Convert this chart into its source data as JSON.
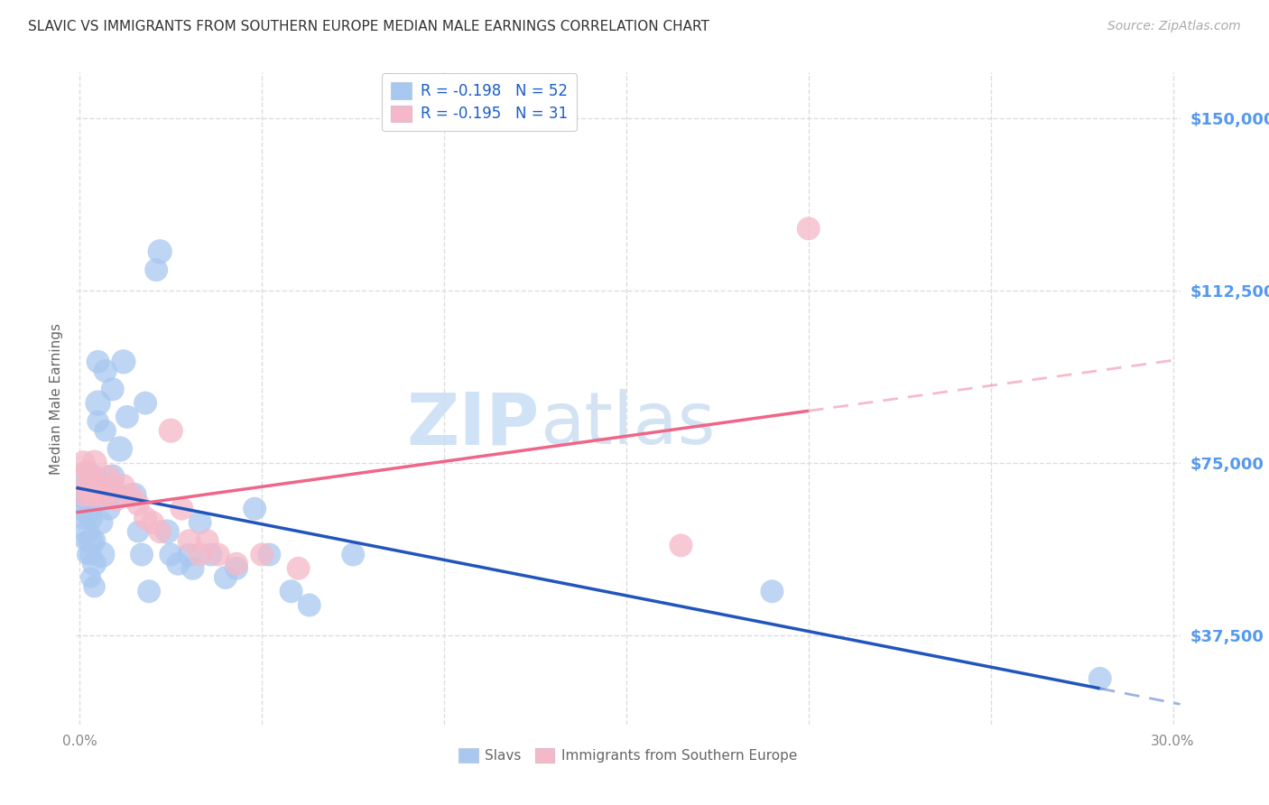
{
  "title": "SLAVIC VS IMMIGRANTS FROM SOUTHERN EUROPE MEDIAN MALE EARNINGS CORRELATION CHART",
  "source": "Source: ZipAtlas.com",
  "ylabel": "Median Male Earnings",
  "ytick_labels": [
    "$37,500",
    "$75,000",
    "$112,500",
    "$150,000"
  ],
  "ytick_values": [
    37500,
    75000,
    112500,
    150000
  ],
  "ymin": 18000,
  "ymax": 160000,
  "xmin": -0.001,
  "xmax": 0.302,
  "watermark_zip": "ZIP",
  "watermark_atlas": "atlas",
  "legend_line1": "R = -0.198   N = 52",
  "legend_line2": "R = -0.195   N = 31",
  "blue_scatter_color": "#A8C8F0",
  "pink_scatter_color": "#F5B8C8",
  "line_blue_color": "#2255BB",
  "line_pink_color": "#EE6688",
  "background_color": "#FFFFFF",
  "grid_color": "#DDDDDD",
  "title_fontsize": 11,
  "tick_label_color": "#5599EE",
  "ylabel_color": "#666666",
  "slavs_x": [
    0.001,
    0.001,
    0.001,
    0.002,
    0.002,
    0.002,
    0.002,
    0.003,
    0.003,
    0.003,
    0.003,
    0.004,
    0.004,
    0.004,
    0.005,
    0.005,
    0.005,
    0.006,
    0.006,
    0.007,
    0.007,
    0.008,
    0.008,
    0.009,
    0.009,
    0.01,
    0.011,
    0.012,
    0.013,
    0.015,
    0.016,
    0.017,
    0.018,
    0.019,
    0.021,
    0.022,
    0.024,
    0.025,
    0.027,
    0.03,
    0.031,
    0.033,
    0.036,
    0.04,
    0.043,
    0.048,
    0.052,
    0.058,
    0.063,
    0.075,
    0.19,
    0.28
  ],
  "slavs_y": [
    67000,
    63000,
    58000,
    70000,
    65000,
    60000,
    55000,
    63000,
    58000,
    55000,
    50000,
    58000,
    53000,
    48000,
    97000,
    88000,
    84000,
    62000,
    55000,
    95000,
    82000,
    68000,
    65000,
    91000,
    72000,
    68000,
    78000,
    97000,
    85000,
    68000,
    60000,
    55000,
    88000,
    47000,
    117000,
    121000,
    60000,
    55000,
    53000,
    55000,
    52000,
    62000,
    55000,
    50000,
    52000,
    65000,
    55000,
    47000,
    44000,
    55000,
    47000,
    28000
  ],
  "slavs_size": [
    35,
    50,
    30,
    200,
    80,
    55,
    40,
    55,
    60,
    45,
    40,
    50,
    55,
    45,
    50,
    60,
    45,
    50,
    65,
    50,
    45,
    60,
    50,
    50,
    55,
    50,
    60,
    55,
    50,
    55,
    45,
    50,
    50,
    50,
    50,
    55,
    55,
    50,
    50,
    50,
    50,
    50,
    50,
    50,
    50,
    50,
    50,
    50,
    50,
    50,
    50,
    50
  ],
  "imm_x": [
    0.001,
    0.001,
    0.002,
    0.002,
    0.003,
    0.003,
    0.004,
    0.004,
    0.005,
    0.006,
    0.007,
    0.008,
    0.009,
    0.01,
    0.012,
    0.014,
    0.016,
    0.018,
    0.02,
    0.022,
    0.025,
    0.028,
    0.03,
    0.033,
    0.035,
    0.038,
    0.043,
    0.05,
    0.06,
    0.165,
    0.2
  ],
  "imm_y": [
    75000,
    68000,
    73000,
    70000,
    72000,
    68000,
    75000,
    68000,
    70000,
    68000,
    68000,
    72000,
    70000,
    67000,
    70000,
    68000,
    66000,
    63000,
    62000,
    60000,
    82000,
    65000,
    58000,
    55000,
    58000,
    55000,
    53000,
    55000,
    52000,
    57000,
    126000
  ],
  "imm_size": [
    55,
    50,
    50,
    55,
    50,
    50,
    60,
    50,
    50,
    50,
    50,
    50,
    55,
    50,
    50,
    50,
    50,
    50,
    50,
    50,
    55,
    50,
    50,
    50,
    50,
    50,
    50,
    50,
    50,
    50,
    50
  ]
}
